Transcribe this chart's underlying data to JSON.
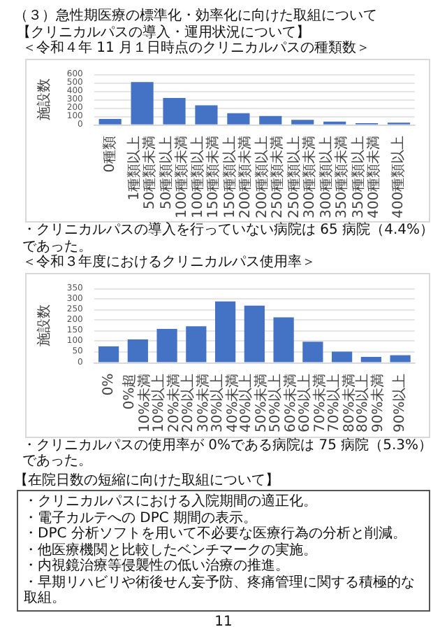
{
  "chart_data": [
    {
      "type": "other",
      "title": "（３）急性期医療の標準化・効率化に向けた取組について",
      "subtitle": "【クリニカルパスの導入・運用状況について】"
    },
    {
      "type": "bar",
      "title": "＜令和４年 11 月１日時点のクリニカルパスの種類数＞",
      "ylabel": "施設数",
      "categories": [
        "0種類",
        "1種類以上50種類未満",
        "50種類以上100種類未満",
        "100種類以上150種類未満",
        "150種類以上200種類未満",
        "200種類以上250種類未満",
        "250種類以上300種類未満",
        "300種類以上350種類未満",
        "350種類以上400種類未満",
        "400種類以上"
      ],
      "values": [
        65,
        505,
        315,
        228,
        135,
        100,
        55,
        35,
        15,
        22
      ],
      "color": "#4472c4",
      "ylim": [
        0,
        600
      ],
      "yticks": [
        0,
        100,
        200,
        300,
        400,
        500,
        600
      ],
      "grid": "y",
      "annotations": [
        "・クリニカルパスの導入を行っていない病院は 65 病院（4.4%）であった。"
      ]
    },
    {
      "type": "bar",
      "title": "＜令和３年度におけるクリニカルパス使用率＞",
      "ylabel": "施設数",
      "categories": [
        "0%",
        "0%超10%未満",
        "10%以上20%未満",
        "20%以上30%未満",
        "30%以上40%未満",
        "40%以上50%未満",
        "50%以上60%未満",
        "60%以上70%未満",
        "70%以上80%未満",
        "80%以上90%未満",
        "90%以上"
      ],
      "values": [
        75,
        108,
        158,
        170,
        288,
        268,
        212,
        97,
        50,
        25,
        33
      ],
      "color": "#4472c4",
      "ylim": [
        0,
        350
      ],
      "yticks": [
        0,
        50,
        100,
        150,
        200,
        250,
        300,
        350
      ],
      "grid": "y",
      "annotations": [
        "・クリニカルパスの使用率が 0%である病院は 75 病院（5.3%）であった。"
      ]
    },
    {
      "type": "other",
      "title": "【在院日数の短縮に向けた取組について】",
      "annotations": [
        "・クリニカルパスにおける入院期間の適正化。",
        "・電子カルテへの DPC 期間の表示。",
        "・DPC 分析ソフトを用いて不必要な医療行為の分析と削減。",
        "・他医療機関と比較したベンチマークの実施。",
        "・内視鏡治療等侵襲性の低い治療の推進。",
        "・早期リハビリや術後せん妄予防、疼痛管理に関する積極的な取組。"
      ]
    },
    {
      "type": "other",
      "annotations": [
        "11"
      ]
    }
  ]
}
